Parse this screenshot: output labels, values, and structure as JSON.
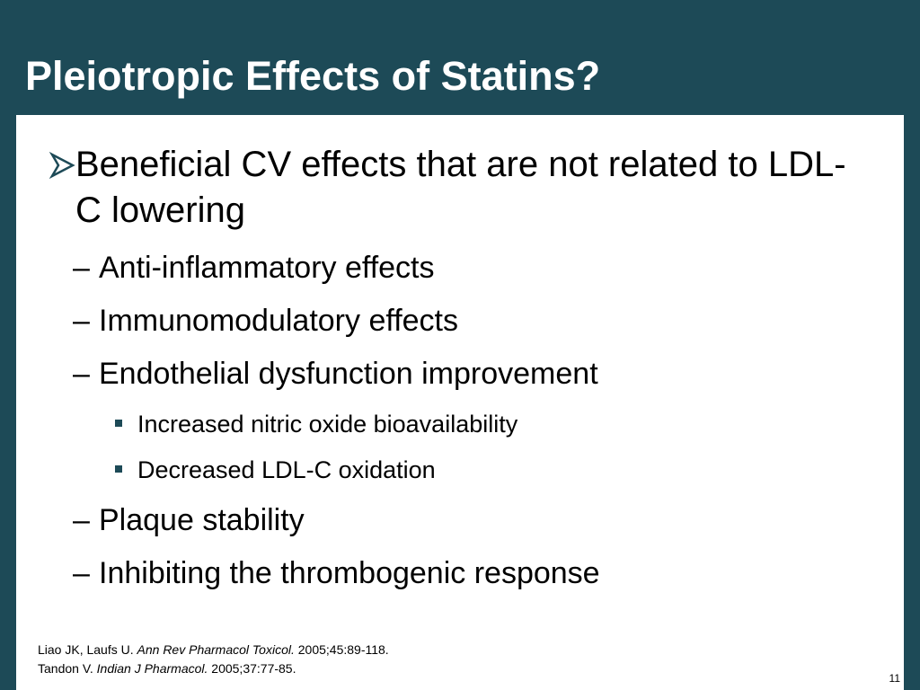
{
  "slide": {
    "title": "Pleiotropic Effects of Statins?",
    "main_bullet": "Beneficial CV effects that are not related to LDL-C lowering",
    "sub_bullets": [
      {
        "dash": "–",
        "text": "Anti-inflammatory effects"
      },
      {
        "dash": "–",
        "text": "Immunomodulatory effects"
      },
      {
        "dash": "–",
        "text": "Endothelial dysfunction improvement"
      },
      {
        "dash": "–",
        "text": "Plaque stability"
      },
      {
        "dash": "–",
        "text": "Inhibiting the thrombogenic response"
      }
    ],
    "sub_sub_bullets": [
      "Increased nitric oxide bioavailability",
      "Decreased LDL-C oxidation"
    ],
    "references": [
      {
        "authors": "Liao JK, Laufs U. ",
        "journal": "Ann Rev Pharmacol Toxicol.",
        "details": " 2005;45:89-118."
      },
      {
        "authors": "Tandon V. ",
        "journal": "Indian J Pharmacol.",
        "details": " 2005;37:77-85."
      }
    ],
    "page_number": "11",
    "colors": {
      "background": "#1d4a57",
      "content_panel": "#ffffff",
      "bullet_marker": "#1d4a57",
      "text": "#000000"
    },
    "icons": {
      "main_bullet": "arrow-bullet-icon",
      "sub_sub_bullet": "square-bullet-icon"
    }
  }
}
